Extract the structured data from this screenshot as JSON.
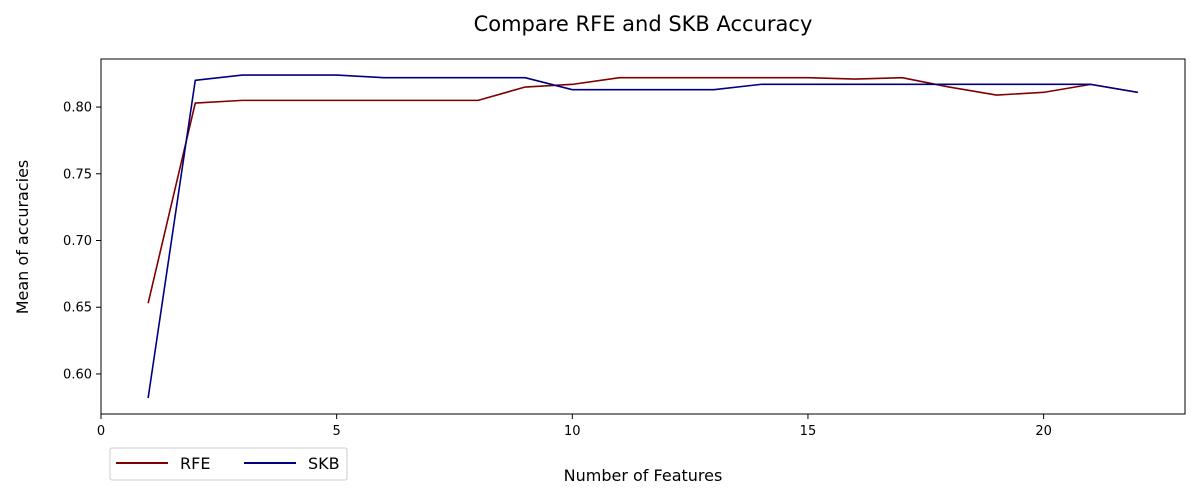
{
  "chart_data": {
    "type": "line",
    "title": "Compare RFE and SKB Accuracy",
    "xlabel": "Number of Features",
    "ylabel": "Mean of accuracies",
    "xlim": [
      0,
      23
    ],
    "ylim": [
      0.57,
      0.836
    ],
    "xticks": [
      0,
      5,
      10,
      15,
      20
    ],
    "yticks": [
      0.6,
      0.65,
      0.7,
      0.75,
      0.8
    ],
    "xtick_labels": [
      "0",
      "5",
      "10",
      "15",
      "20"
    ],
    "ytick_labels": [
      "0.60",
      "0.65",
      "0.70",
      "0.75",
      "0.80"
    ],
    "grid": false,
    "legend_position": "bottom-left, below plot",
    "x": [
      1,
      2,
      3,
      4,
      5,
      6,
      7,
      8,
      9,
      10,
      11,
      12,
      13,
      14,
      15,
      16,
      17,
      18,
      19,
      20,
      21,
      22
    ],
    "series": [
      {
        "name": "RFE",
        "color": "#800000",
        "values": [
          0.653,
          0.803,
          0.805,
          0.805,
          0.805,
          0.805,
          0.805,
          0.805,
          0.815,
          0.817,
          0.822,
          0.822,
          0.822,
          0.822,
          0.822,
          0.821,
          0.822,
          0.815,
          0.809,
          0.811,
          0.817,
          0.811
        ]
      },
      {
        "name": "SKB",
        "color": "#000080",
        "values": [
          0.582,
          0.82,
          0.824,
          0.824,
          0.824,
          0.822,
          0.822,
          0.822,
          0.822,
          0.813,
          0.813,
          0.813,
          0.813,
          0.817,
          0.817,
          0.817,
          0.817,
          0.817,
          0.817,
          0.817,
          0.817,
          0.811
        ]
      }
    ]
  }
}
